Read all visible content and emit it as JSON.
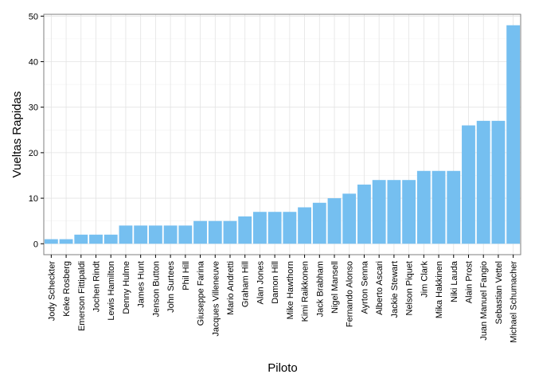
{
  "chart_data": {
    "type": "bar",
    "title": "",
    "xlabel": "Piloto",
    "ylabel": "Vueltas Rapidas",
    "ylim": [
      -2.4,
      50.4
    ],
    "yticks": [
      0,
      10,
      20,
      30,
      40,
      50
    ],
    "grid": true,
    "bar_color": "#75bff0",
    "categories": [
      "Jody Scheckter",
      "Keke Rosberg",
      "Emerson Fittipaldi",
      "Jochen Rindt",
      "Lewis Hamilton",
      "Denny Hulme",
      "James Hunt",
      "Jenson Button",
      "John Surtees",
      "Phil Hill",
      "Giuseppe Farina",
      "Jacques Villeneuve",
      "Mario Andretti",
      "Graham Hill",
      "Alan Jones",
      "Damon Hill",
      "Mike Hawthorn",
      "Kimi Raikkonen",
      "Jack Brabham",
      "Nigel Mansell",
      "Fernando Alonso",
      "Ayrton Senna",
      "Alberto Ascari",
      "Jackie Stewart",
      "Nelson Piquet",
      "Jim Clark",
      "Mika Hakkinen",
      "Niki Lauda",
      "Alain Prost",
      "Juan Manuel Fangio",
      "Sebastian Vettel",
      "Michael Schumacher"
    ],
    "values": [
      1,
      1,
      2,
      2,
      2,
      4,
      4,
      4,
      4,
      4,
      5,
      5,
      5,
      6,
      7,
      7,
      7,
      8,
      9,
      10,
      11,
      13,
      14,
      14,
      14,
      16,
      16,
      16,
      26,
      27,
      27,
      48
    ]
  }
}
